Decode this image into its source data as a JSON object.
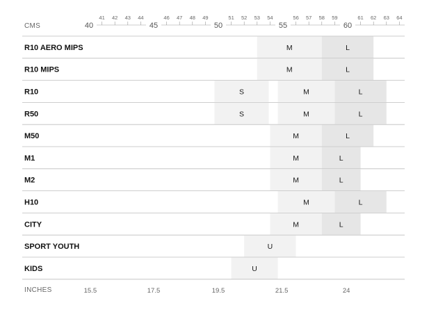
{
  "header": {
    "cms_label": "CMS",
    "inches_label": "INCHES"
  },
  "colors": {
    "shade_light": "#f2f2f2",
    "shade_dark": "#e6e6e6",
    "rule": "#bdbdbd",
    "text": "#1a1a1a",
    "muted": "#666666"
  },
  "chart_data": {
    "type": "table",
    "cm_major_ticks": [
      40,
      45,
      50,
      55,
      60
    ],
    "cm_minor_ticks": [
      41,
      42,
      43,
      44,
      46,
      47,
      48,
      49,
      51,
      52,
      53,
      54,
      56,
      57,
      58,
      59,
      61,
      62,
      63,
      64
    ],
    "inch_ticks": [
      {
        "label": "15.5",
        "cm": 40.1
      },
      {
        "label": "17.5",
        "cm": 45.0
      },
      {
        "label": "19.5",
        "cm": 50.0
      },
      {
        "label": "21.5",
        "cm": 54.9
      },
      {
        "label": "24",
        "cm": 59.9
      }
    ],
    "rows": [
      {
        "name": "R10 AERO MIPS",
        "sizes": [
          {
            "label": "M",
            "from": 53.0,
            "to": 58.0,
            "shade": "light"
          },
          {
            "label": "L",
            "from": 58.0,
            "to": 62.0,
            "shade": "dark"
          }
        ]
      },
      {
        "name": "R10 MIPS",
        "sizes": [
          {
            "label": "M",
            "from": 53.0,
            "to": 58.0,
            "shade": "light"
          },
          {
            "label": "L",
            "from": 58.0,
            "to": 62.0,
            "shade": "dark"
          }
        ]
      },
      {
        "name": "R10",
        "sizes": [
          {
            "label": "S",
            "from": 49.7,
            "to": 53.9,
            "shade": "light"
          },
          {
            "label": "M",
            "from": 54.6,
            "to": 59.0,
            "shade": "light"
          },
          {
            "label": "L",
            "from": 59.0,
            "to": 63.0,
            "shade": "dark"
          }
        ]
      },
      {
        "name": "R50",
        "sizes": [
          {
            "label": "S",
            "from": 49.7,
            "to": 53.9,
            "shade": "light"
          },
          {
            "label": "M",
            "from": 54.6,
            "to": 59.0,
            "shade": "light"
          },
          {
            "label": "L",
            "from": 59.0,
            "to": 63.0,
            "shade": "dark"
          }
        ]
      },
      {
        "name": "M50",
        "sizes": [
          {
            "label": "M",
            "from": 54.0,
            "to": 58.0,
            "shade": "light"
          },
          {
            "label": "L",
            "from": 58.0,
            "to": 62.0,
            "shade": "dark"
          }
        ]
      },
      {
        "name": "M1",
        "sizes": [
          {
            "label": "M",
            "from": 54.0,
            "to": 58.0,
            "shade": "light"
          },
          {
            "label": "L",
            "from": 58.0,
            "to": 61.0,
            "shade": "dark"
          }
        ]
      },
      {
        "name": "M2",
        "sizes": [
          {
            "label": "M",
            "from": 54.0,
            "to": 58.0,
            "shade": "light"
          },
          {
            "label": "L",
            "from": 58.0,
            "to": 61.0,
            "shade": "dark"
          }
        ]
      },
      {
        "name": "H10",
        "sizes": [
          {
            "label": "M",
            "from": 54.6,
            "to": 59.0,
            "shade": "light"
          },
          {
            "label": "L",
            "from": 59.0,
            "to": 63.0,
            "shade": "dark"
          }
        ]
      },
      {
        "name": "CITY",
        "sizes": [
          {
            "label": "M",
            "from": 54.0,
            "to": 58.0,
            "shade": "light"
          },
          {
            "label": "L",
            "from": 58.0,
            "to": 61.0,
            "shade": "dark"
          }
        ]
      },
      {
        "name": "SPORT YOUTH",
        "sizes": [
          {
            "label": "U",
            "from": 52.0,
            "to": 56.0,
            "shade": "light"
          }
        ]
      },
      {
        "name": "KIDS",
        "sizes": [
          {
            "label": "U",
            "from": 51.0,
            "to": 54.6,
            "shade": "light"
          }
        ]
      }
    ]
  }
}
